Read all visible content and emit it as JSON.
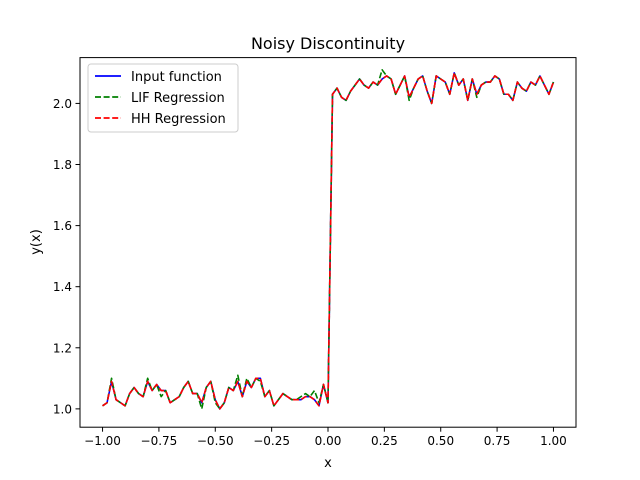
{
  "chart_data": {
    "type": "line",
    "title": "Noisy Discontinuity",
    "xlabel": "x",
    "ylabel": "y(x)",
    "xlim": [
      -1.1,
      1.1
    ],
    "ylim": [
      0.94,
      2.15
    ],
    "xticks": [
      -1.0,
      -0.75,
      -0.5,
      -0.25,
      0.0,
      0.25,
      0.5,
      0.75,
      1.0
    ],
    "xtick_labels": [
      "−1.00",
      "−0.75",
      "−0.50",
      "−0.25",
      "0.00",
      "0.25",
      "0.50",
      "0.75",
      "1.00"
    ],
    "yticks": [
      1.0,
      1.2,
      1.4,
      1.6,
      1.8,
      2.0
    ],
    "ytick_labels": [
      "1.0",
      "1.2",
      "1.4",
      "1.6",
      "1.8",
      "2.0"
    ],
    "grid": false,
    "legend_position": "upper-left",
    "x": [
      -1.0,
      -0.98,
      -0.96,
      -0.94,
      -0.92,
      -0.9,
      -0.88,
      -0.86,
      -0.84,
      -0.82,
      -0.8,
      -0.78,
      -0.76,
      -0.74,
      -0.72,
      -0.7,
      -0.68,
      -0.66,
      -0.64,
      -0.62,
      -0.6,
      -0.58,
      -0.56,
      -0.54,
      -0.52,
      -0.5,
      -0.48,
      -0.46,
      -0.44,
      -0.42,
      -0.4,
      -0.38,
      -0.36,
      -0.34,
      -0.32,
      -0.3,
      -0.28,
      -0.26,
      -0.24,
      -0.22,
      -0.2,
      -0.18,
      -0.16,
      -0.14,
      -0.12,
      -0.1,
      -0.08,
      -0.06,
      -0.04,
      -0.02,
      0.0,
      0.02,
      0.04,
      0.06,
      0.08,
      0.1,
      0.12,
      0.14,
      0.16,
      0.18,
      0.2,
      0.22,
      0.24,
      0.26,
      0.28,
      0.3,
      0.32,
      0.34,
      0.36,
      0.38,
      0.4,
      0.42,
      0.44,
      0.46,
      0.48,
      0.5,
      0.52,
      0.54,
      0.56,
      0.58,
      0.6,
      0.62,
      0.64,
      0.66,
      0.68,
      0.7,
      0.72,
      0.74,
      0.76,
      0.78,
      0.8,
      0.82,
      0.84,
      0.86,
      0.88,
      0.9,
      0.92,
      0.94,
      0.96,
      0.98,
      1.0
    ],
    "series": [
      {
        "name": "Input function",
        "color": "#0000ff",
        "dash": "solid",
        "values": [
          1.01,
          1.02,
          1.09,
          1.03,
          1.02,
          1.01,
          1.05,
          1.07,
          1.05,
          1.04,
          1.09,
          1.06,
          1.08,
          1.06,
          1.06,
          1.02,
          1.03,
          1.04,
          1.07,
          1.09,
          1.05,
          1.05,
          1.02,
          1.07,
          1.09,
          1.03,
          1.0,
          1.02,
          1.07,
          1.06,
          1.09,
          1.04,
          1.09,
          1.07,
          1.1,
          1.1,
          1.04,
          1.06,
          1.01,
          1.03,
          1.05,
          1.04,
          1.03,
          1.03,
          1.03,
          1.04,
          1.04,
          1.03,
          1.01,
          1.08,
          1.02,
          2.03,
          2.05,
          2.02,
          2.01,
          2.04,
          2.06,
          2.08,
          2.06,
          2.05,
          2.07,
          2.06,
          2.08,
          2.09,
          2.08,
          2.03,
          2.06,
          2.09,
          2.02,
          2.05,
          2.08,
          2.09,
          2.04,
          2.0,
          2.09,
          2.08,
          2.07,
          2.03,
          2.1,
          2.06,
          2.08,
          2.01,
          2.08,
          2.03,
          2.06,
          2.07,
          2.07,
          2.09,
          2.08,
          2.03,
          2.03,
          2.01,
          2.07,
          2.05,
          2.04,
          2.07,
          2.06,
          2.09,
          2.06,
          2.03,
          2.07
        ]
      },
      {
        "name": "LIF Regression",
        "color": "#008000",
        "dash": "dashed",
        "values": [
          1.01,
          1.02,
          1.1,
          1.03,
          1.02,
          1.01,
          1.05,
          1.07,
          1.05,
          1.04,
          1.1,
          1.06,
          1.08,
          1.04,
          1.06,
          1.02,
          1.03,
          1.04,
          1.07,
          1.09,
          1.05,
          1.05,
          1.0,
          1.07,
          1.09,
          1.02,
          1.0,
          1.02,
          1.07,
          1.06,
          1.11,
          1.04,
          1.1,
          1.07,
          1.1,
          1.09,
          1.04,
          1.06,
          1.01,
          1.03,
          1.05,
          1.04,
          1.03,
          1.03,
          1.04,
          1.05,
          1.04,
          1.06,
          1.02,
          1.08,
          1.02,
          2.03,
          2.05,
          2.02,
          2.01,
          2.04,
          2.06,
          2.08,
          2.06,
          2.05,
          2.07,
          2.06,
          2.11,
          2.09,
          2.08,
          2.03,
          2.06,
          2.09,
          2.01,
          2.05,
          2.08,
          2.09,
          2.04,
          2.0,
          2.09,
          2.08,
          2.07,
          2.03,
          2.1,
          2.06,
          2.08,
          2.01,
          2.08,
          2.02,
          2.06,
          2.07,
          2.07,
          2.09,
          2.08,
          2.03,
          2.03,
          2.01,
          2.07,
          2.05,
          2.04,
          2.07,
          2.06,
          2.09,
          2.06,
          2.03,
          2.07
        ]
      },
      {
        "name": "HH Regression",
        "color": "#ff0000",
        "dash": "dashed",
        "values": [
          1.01,
          1.02,
          1.09,
          1.03,
          1.02,
          1.01,
          1.05,
          1.07,
          1.05,
          1.04,
          1.09,
          1.06,
          1.08,
          1.06,
          1.06,
          1.02,
          1.03,
          1.04,
          1.07,
          1.09,
          1.05,
          1.05,
          1.02,
          1.07,
          1.09,
          1.03,
          1.0,
          1.02,
          1.07,
          1.06,
          1.09,
          1.04,
          1.09,
          1.07,
          1.1,
          1.1,
          1.04,
          1.06,
          1.01,
          1.03,
          1.05,
          1.04,
          1.03,
          1.03,
          1.03,
          1.04,
          1.04,
          1.03,
          1.01,
          1.08,
          1.02,
          2.03,
          2.05,
          2.02,
          2.01,
          2.04,
          2.06,
          2.08,
          2.06,
          2.05,
          2.07,
          2.06,
          2.08,
          2.09,
          2.08,
          2.03,
          2.06,
          2.09,
          2.02,
          2.05,
          2.08,
          2.09,
          2.04,
          2.0,
          2.09,
          2.08,
          2.07,
          2.03,
          2.1,
          2.06,
          2.08,
          2.01,
          2.08,
          2.03,
          2.06,
          2.07,
          2.07,
          2.09,
          2.08,
          2.03,
          2.03,
          2.01,
          2.07,
          2.05,
          2.04,
          2.07,
          2.06,
          2.09,
          2.06,
          2.03,
          2.07
        ]
      }
    ]
  }
}
